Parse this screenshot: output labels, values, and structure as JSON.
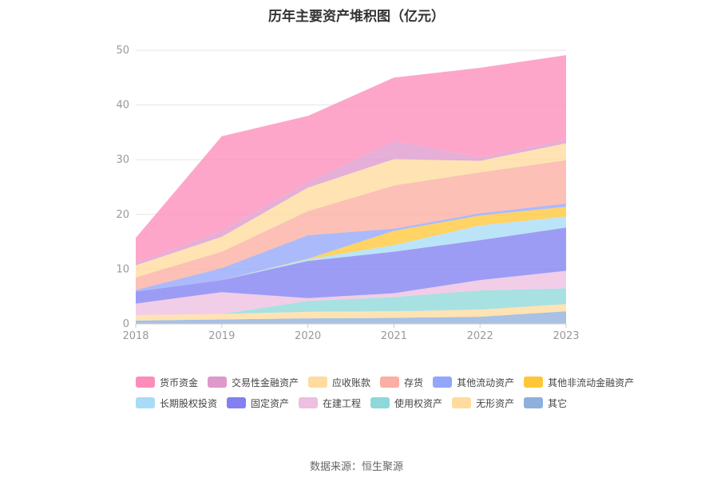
{
  "title": "历年主要资产堆积图（亿元）",
  "source": "数据来源：恒生聚源",
  "chart_data": {
    "type": "area",
    "stacked": true,
    "categories": [
      "2018",
      "2019",
      "2020",
      "2021",
      "2022",
      "2023"
    ],
    "ylim": [
      0,
      50
    ],
    "yticks": [
      "0",
      "10",
      "20",
      "30",
      "40",
      "50"
    ],
    "grid": true,
    "legend_position": "bottom",
    "series": [
      {
        "name": "其它",
        "color": "#8fb0dc",
        "values": [
          0.6,
          0.8,
          1.0,
          1.1,
          1.3,
          2.3
        ]
      },
      {
        "name": "无形资产",
        "color": "#ffdb9e",
        "values": [
          1.0,
          1.0,
          1.2,
          1.2,
          1.3,
          1.3
        ]
      },
      {
        "name": "使用权资产",
        "color": "#8fd8d9",
        "values": [
          0.0,
          0.0,
          2.0,
          2.6,
          3.5,
          2.9
        ]
      },
      {
        "name": "在建工程",
        "color": "#edbfe0",
        "values": [
          2.1,
          4.0,
          0.5,
          0.7,
          1.9,
          3.2
        ]
      },
      {
        "name": "固定资产",
        "color": "#8280f2",
        "values": [
          2.2,
          2.2,
          6.8,
          7.6,
          7.3,
          7.9
        ]
      },
      {
        "name": "长期股权投资",
        "color": "#a8dcf6",
        "values": [
          0.0,
          0.0,
          0.3,
          1.2,
          2.7,
          2.0
        ]
      },
      {
        "name": "其他非流动金融资产",
        "color": "#ffc738",
        "values": [
          0.0,
          0.0,
          0.1,
          2.6,
          1.8,
          1.8
        ]
      },
      {
        "name": "其他流动资产",
        "color": "#93a6fa",
        "values": [
          0.3,
          2.2,
          4.3,
          0.4,
          0.4,
          0.6
        ]
      },
      {
        "name": "存货",
        "color": "#fbaea2",
        "values": [
          2.3,
          3.0,
          4.4,
          7.9,
          7.5,
          7.9
        ]
      },
      {
        "name": "应收账款",
        "color": "#ffdb9e",
        "values": [
          2.2,
          2.7,
          4.3,
          4.8,
          2.1,
          3.1
        ]
      },
      {
        "name": "交易性金融资产",
        "color": "#de99cc",
        "values": [
          0.4,
          1.1,
          1.0,
          3.3,
          0.6,
          0.6
        ]
      },
      {
        "name": "货币资金",
        "color": "#fc8dba",
        "values": [
          4.6,
          17.3,
          12.1,
          11.6,
          16.4,
          15.5
        ]
      }
    ],
    "legend_order": [
      "货币资金",
      "交易性金融资产",
      "应收账款",
      "存货",
      "其他流动资产",
      "其他非流动金融资产",
      "长期股权投资",
      "固定资产",
      "在建工程",
      "使用权资产",
      "无形资产",
      "其它"
    ]
  }
}
